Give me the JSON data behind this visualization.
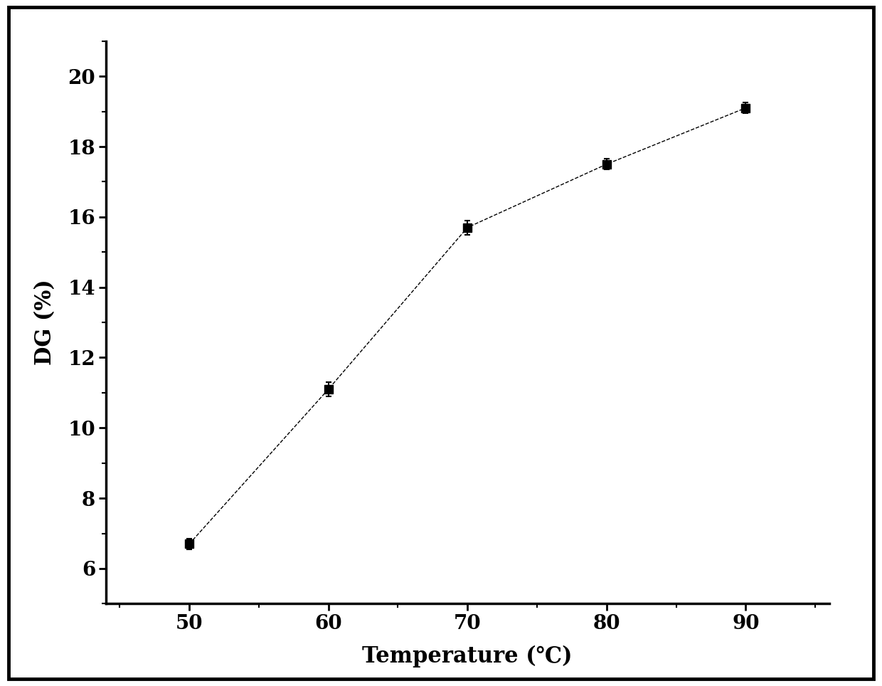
{
  "x": [
    50,
    60,
    70,
    80,
    90
  ],
  "y": [
    6.7,
    11.1,
    15.7,
    17.5,
    19.1
  ],
  "yerr": [
    0.15,
    0.2,
    0.2,
    0.15,
    0.15
  ],
  "xlabel": "Temperature (℃)",
  "ylabel": "DG (%)",
  "xlim": [
    44,
    96
  ],
  "ylim": [
    5,
    21
  ],
  "yticks": [
    6,
    8,
    10,
    12,
    14,
    16,
    18,
    20
  ],
  "xticks": [
    50,
    60,
    70,
    80,
    90
  ],
  "line_color": "#000000",
  "marker_color": "#000000",
  "marker": "s",
  "marker_size": 9,
  "line_style": "--",
  "line_width": 1.0,
  "capsize": 3,
  "xlabel_fontsize": 22,
  "ylabel_fontsize": 22,
  "tick_fontsize": 20,
  "background_color": "#ffffff",
  "spine_color": "#000000",
  "spine_linewidth": 2.5,
  "outer_border_linewidth": 3.5
}
